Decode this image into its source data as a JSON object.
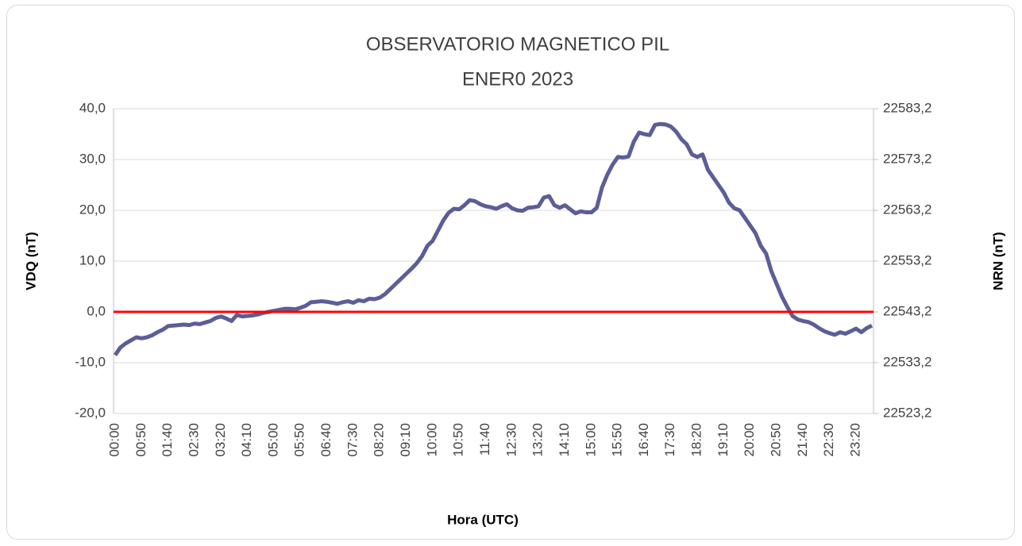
{
  "chart_data": {
    "type": "line",
    "title": "OBSERVATORIO MAGNETICO PIL",
    "subtitle": "ENER0 2023",
    "x_label": "Hora (UTC)",
    "y_label": "VDQ (nT)",
    "y2_label": "NRN (nT)",
    "categories": [
      "00:00",
      null,
      null,
      null,
      null,
      "00:50",
      null,
      null,
      null,
      null,
      "01:40",
      null,
      null,
      null,
      null,
      "02:30",
      null,
      null,
      null,
      null,
      "03:20",
      null,
      null,
      null,
      null,
      "04:10",
      null,
      null,
      null,
      null,
      "05:00",
      null,
      null,
      null,
      null,
      "05:50",
      null,
      null,
      null,
      null,
      "06:40",
      null,
      null,
      null,
      null,
      "07:30",
      null,
      null,
      null,
      null,
      "08:20",
      null,
      null,
      null,
      null,
      "09:10",
      null,
      null,
      null,
      null,
      "10:00",
      null,
      null,
      null,
      null,
      "10:50",
      null,
      null,
      null,
      null,
      "11:40",
      null,
      null,
      null,
      null,
      "12:30",
      null,
      null,
      null,
      null,
      "13:20",
      null,
      null,
      null,
      null,
      "14:10",
      null,
      null,
      null,
      null,
      "15:00",
      null,
      null,
      null,
      null,
      "15:50",
      null,
      null,
      null,
      null,
      "16:40",
      null,
      null,
      null,
      null,
      "17:30",
      null,
      null,
      null,
      null,
      "18:20",
      null,
      null,
      null,
      null,
      "19:10",
      null,
      null,
      null,
      null,
      "20:00",
      null,
      null,
      null,
      null,
      "20:50",
      null,
      null,
      null,
      null,
      "21:40",
      null,
      null,
      null,
      null,
      "22:30",
      null,
      null,
      null,
      null,
      "23:20",
      null,
      null,
      null
    ],
    "values": [
      -8.5,
      -7.0,
      -6.2,
      -5.6,
      -5.0,
      -5.2,
      -5.0,
      -4.6,
      -4.0,
      -3.5,
      -2.8,
      -2.7,
      -2.6,
      -2.5,
      -2.6,
      -2.3,
      -2.4,
      -2.1,
      -1.8,
      -1.2,
      -0.9,
      -1.3,
      -1.8,
      -0.6,
      -0.9,
      -0.8,
      -0.7,
      -0.5,
      -0.2,
      0.0,
      0.2,
      0.4,
      0.6,
      0.6,
      0.5,
      0.8,
      1.2,
      1.9,
      2.0,
      2.1,
      2.0,
      1.8,
      1.6,
      1.9,
      2.1,
      1.8,
      2.3,
      2.1,
      2.6,
      2.5,
      2.8,
      3.5,
      4.5,
      5.5,
      6.5,
      7.5,
      8.5,
      9.6,
      11.0,
      13.0,
      14.0,
      16.0,
      18.0,
      19.5,
      20.3,
      20.2,
      21.0,
      22.0,
      21.8,
      21.2,
      20.8,
      20.6,
      20.3,
      20.8,
      21.2,
      20.4,
      20.0,
      19.9,
      20.5,
      20.6,
      20.8,
      22.5,
      22.8,
      21.0,
      20.5,
      21.0,
      20.2,
      19.4,
      19.8,
      19.6,
      19.6,
      20.5,
      24.5,
      27.0,
      29.0,
      30.5,
      30.4,
      30.6,
      33.5,
      35.3,
      35.0,
      34.8,
      36.8,
      37.0,
      36.9,
      36.5,
      35.5,
      34.0,
      33.0,
      31.0,
      30.5,
      31.0,
      28.0,
      26.5,
      25.0,
      23.5,
      21.5,
      20.4,
      20.0,
      18.5,
      17.0,
      15.5,
      13.0,
      11.5,
      8.0,
      5.5,
      3.0,
      1.0,
      -0.8,
      -1.5,
      -1.8,
      -2.0,
      -2.5,
      -3.2,
      -3.8,
      -4.2,
      -4.5,
      -4.0,
      -4.3,
      -3.8,
      -3.3,
      -4.0,
      -3.2,
      -2.7
    ],
    "color": "#5b5e96",
    "reference_line": {
      "value": 0,
      "color": "#ff0000"
    },
    "ylim": [
      -20,
      40
    ],
    "yticks": [
      {
        "value": -20,
        "label": "-20,0"
      },
      {
        "value": -10,
        "label": "-10,0"
      },
      {
        "value": 0,
        "label": "0,0"
      },
      {
        "value": 10,
        "label": "10,0"
      },
      {
        "value": 20,
        "label": "20,0"
      },
      {
        "value": 30,
        "label": "30,0"
      },
      {
        "value": 40,
        "label": "40,0"
      }
    ],
    "y2lim": [
      22523.2,
      22583.2
    ],
    "y2ticks": [
      {
        "value": 22523.2,
        "label": "22523,2"
      },
      {
        "value": 22533.2,
        "label": "22533,2"
      },
      {
        "value": 22543.2,
        "label": "22543,2"
      },
      {
        "value": 22553.2,
        "label": "22553,2"
      },
      {
        "value": 22563.2,
        "label": "22563,2"
      },
      {
        "value": 22573.2,
        "label": "22573,2"
      },
      {
        "value": 22583.2,
        "label": "22583,2"
      }
    ],
    "grid": true
  }
}
